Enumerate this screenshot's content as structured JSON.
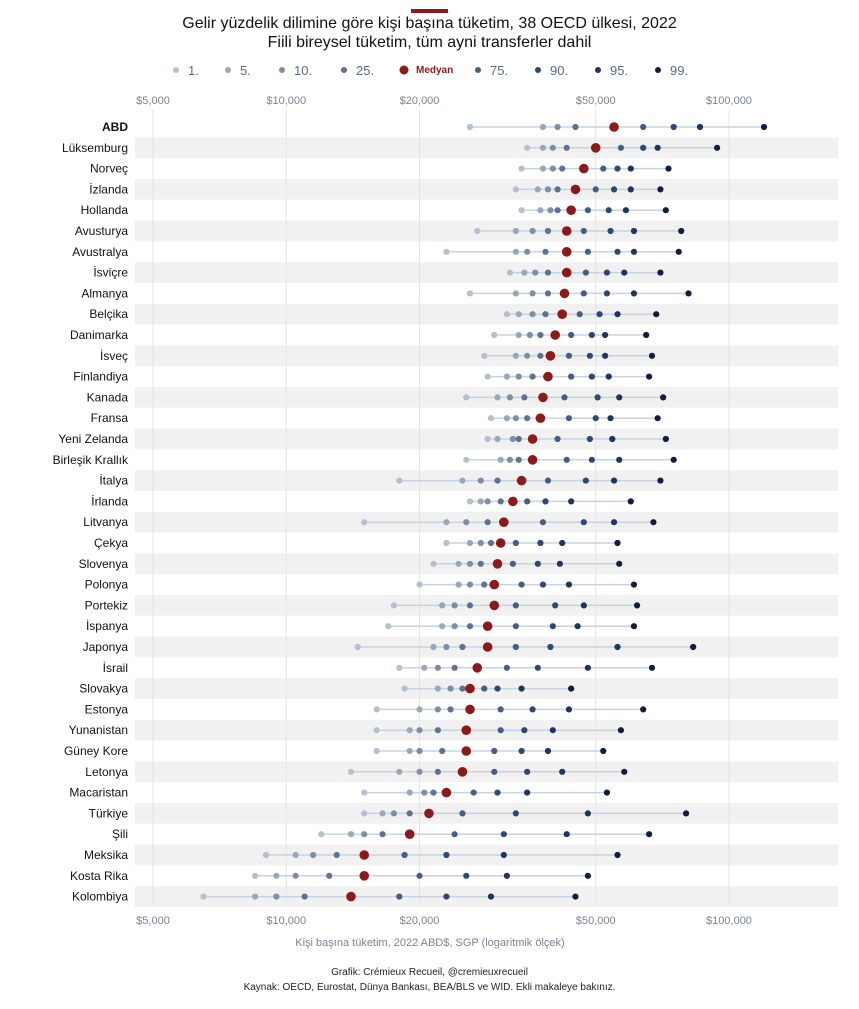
{
  "header": {
    "title_line1": "Gelir yüzdelik dilimine göre kişi başına tüketim, 38 OECD ülkesi, 2022",
    "title_line2": "Fiili bireysel tüketim, tüm ayni transferler dahil"
  },
  "footer": {
    "credit": "Grafik: Crémieux Recueil, @cremieuxrecueil",
    "source": "Kaynak: OECD, Eurostat, Dünya Bankası, BEA/BLS ve WID. Ekli makaleye bakınız."
  },
  "colors": {
    "accent": "#8b1a1a",
    "median": "#8b1a1a",
    "stripe": "#f1f1f1",
    "range_line": "#c9d3df",
    "grid": "#e4e4e4",
    "percentiles": [
      "#b3c0d1",
      "#98a8bc",
      "#7d8fa8",
      "#5e7394",
      "#8b1a1a",
      "#465e85",
      "#2e4775",
      "#203462",
      "#111d40"
    ]
  },
  "chart_data": {
    "type": "scatter",
    "title": "Gelir yüzdelik dilimine göre kişi başına tüketim, 38 OECD ülkesi, 2022",
    "subtitle": "Fiili bireysel tüketim, tüm ayni transferler dahil",
    "xlabel": "Kişi başına tüketim, 2022 ABD$, SGP (logaritmik ölçek)",
    "x_scale": "log",
    "xlim": [
      4000,
      130000
    ],
    "x_ticks": [
      5000,
      10000,
      20000,
      50000,
      100000
    ],
    "x_tick_labels": [
      "$5,000",
      "$10,000",
      "$20,000",
      "$50,000",
      "$100,000"
    ],
    "grid": "vertical",
    "legend": "top",
    "series_labels": [
      "1.",
      "5.",
      "10.",
      "25.",
      "Medyan",
      "75.",
      "90.",
      "95.",
      "99."
    ],
    "countries": [
      {
        "name": "ABD",
        "values": [
          26000,
          38000,
          41000,
          45000,
          55000,
          64000,
          75000,
          86000,
          120000
        ]
      },
      {
        "name": "Lüksemburg",
        "values": [
          35000,
          38000,
          40000,
          43000,
          50000,
          57000,
          64000,
          69000,
          94000
        ]
      },
      {
        "name": "Norveç",
        "values": [
          34000,
          38000,
          40000,
          42000,
          47000,
          52000,
          56000,
          60000,
          73000
        ]
      },
      {
        "name": "İzlanda",
        "values": [
          33000,
          37000,
          39000,
          41000,
          45000,
          50000,
          55000,
          60000,
          70000
        ]
      },
      {
        "name": "Hollanda",
        "values": [
          34000,
          37500,
          39500,
          41000,
          44000,
          48000,
          53500,
          58500,
          72000
        ]
      },
      {
        "name": "Avusturya",
        "values": [
          27000,
          33000,
          36000,
          39000,
          43000,
          47000,
          54000,
          61000,
          78000
        ]
      },
      {
        "name": "Avustralya",
        "values": [
          23000,
          33000,
          35000,
          38500,
          43000,
          48000,
          56000,
          61000,
          77000
        ]
      },
      {
        "name": "İsviçre",
        "values": [
          32000,
          34500,
          36500,
          39000,
          43000,
          47500,
          53000,
          58000,
          70000
        ]
      },
      {
        "name": "Almanya",
        "values": [
          26000,
          33000,
          36000,
          39000,
          42500,
          47000,
          53000,
          61000,
          81000
        ]
      },
      {
        "name": "Belçika",
        "values": [
          31500,
          33500,
          36000,
          38500,
          42000,
          46000,
          51000,
          56000,
          68500
        ]
      },
      {
        "name": "Danimarka",
        "values": [
          29500,
          33500,
          35500,
          37500,
          40500,
          44000,
          49000,
          52500,
          65000
        ]
      },
      {
        "name": "İsveç",
        "values": [
          28000,
          33000,
          35000,
          37500,
          39500,
          43500,
          48500,
          52500,
          67000
        ]
      },
      {
        "name": "Finlandiya",
        "values": [
          28500,
          31500,
          33500,
          36000,
          39000,
          44000,
          49000,
          53500,
          66000
        ]
      },
      {
        "name": "Kanada",
        "values": [
          25500,
          30000,
          32000,
          34500,
          38000,
          42500,
          50500,
          56500,
          71000
        ]
      },
      {
        "name": "Fransa",
        "values": [
          29000,
          31500,
          33000,
          35000,
          37500,
          43500,
          50000,
          54000,
          69000
        ]
      },
      {
        "name": "Yeni Zelanda",
        "values": [
          28500,
          30000,
          32500,
          33500,
          36000,
          41000,
          48500,
          54500,
          72000
        ]
      },
      {
        "name": "Birleşik Krallık",
        "values": [
          25500,
          30500,
          32000,
          33500,
          36000,
          43000,
          49000,
          56500,
          75000
        ]
      },
      {
        "name": "İtalya",
        "values": [
          18000,
          25000,
          27500,
          30000,
          34000,
          39000,
          47500,
          55000,
          70000
        ]
      },
      {
        "name": "İrlanda",
        "values": [
          26000,
          27500,
          28500,
          30500,
          32500,
          35000,
          38500,
          44000,
          60000
        ]
      },
      {
        "name": "Litvanya",
        "values": [
          15000,
          23000,
          25500,
          28500,
          31000,
          38000,
          47000,
          55000,
          67500
        ]
      },
      {
        "name": "Çekya",
        "values": [
          23000,
          26000,
          27500,
          29000,
          30500,
          33000,
          37500,
          42000,
          56000
        ]
      },
      {
        "name": "Slovenya",
        "values": [
          21500,
          24500,
          26000,
          27500,
          30000,
          32500,
          37000,
          41500,
          56500
        ]
      },
      {
        "name": "Polonya",
        "values": [
          20000,
          24500,
          26000,
          28000,
          29500,
          34000,
          38000,
          43500,
          61000
        ]
      },
      {
        "name": "Portekiz",
        "values": [
          17500,
          22500,
          24000,
          26000,
          29500,
          33000,
          40500,
          47000,
          62000
        ]
      },
      {
        "name": "İspanya",
        "values": [
          17000,
          22500,
          24000,
          26000,
          28500,
          33000,
          40000,
          45500,
          61000
        ]
      },
      {
        "name": "Japonya",
        "values": [
          14500,
          21500,
          23000,
          25000,
          28500,
          33000,
          39500,
          56000,
          83000
        ]
      },
      {
        "name": "İsrail",
        "values": [
          18000,
          20500,
          22000,
          24000,
          27000,
          31500,
          37000,
          48000,
          67000
        ]
      },
      {
        "name": "Slovakya",
        "values": [
          18500,
          22000,
          23500,
          25000,
          26000,
          28000,
          30000,
          34000,
          44000
        ]
      },
      {
        "name": "Estonya",
        "values": [
          16000,
          20000,
          22000,
          23500,
          26000,
          30500,
          36000,
          43500,
          64000
        ]
      },
      {
        "name": "Yunanistan",
        "values": [
          16000,
          19000,
          20000,
          22000,
          25500,
          30500,
          34500,
          40000,
          57000
        ]
      },
      {
        "name": "Güney Kore",
        "values": [
          16000,
          19000,
          20000,
          22500,
          25500,
          29500,
          34000,
          39000,
          52000
        ]
      },
      {
        "name": "Letonya",
        "values": [
          14000,
          18000,
          20000,
          22000,
          25000,
          29500,
          35000,
          42000,
          58000
        ]
      },
      {
        "name": "Macaristan",
        "values": [
          15000,
          19000,
          20500,
          21500,
          23000,
          26500,
          30000,
          35000,
          53000
        ]
      },
      {
        "name": "Türkiye",
        "values": [
          15000,
          16500,
          17500,
          19000,
          21000,
          25000,
          33000,
          48000,
          80000
        ]
      },
      {
        "name": "Şili",
        "values": [
          12000,
          14000,
          15000,
          16500,
          19000,
          24000,
          31000,
          43000,
          66000
        ]
      },
      {
        "name": "Meksika",
        "values": [
          9000,
          10500,
          11500,
          13000,
          15000,
          18500,
          23000,
          31000,
          56000
        ]
      },
      {
        "name": "Kosta Rika",
        "values": [
          8500,
          9500,
          10500,
          12500,
          15000,
          20000,
          25500,
          31500,
          48000
        ]
      },
      {
        "name": "Kolombiya",
        "values": [
          6500,
          8500,
          9500,
          11000,
          14000,
          18000,
          23000,
          29000,
          45000
        ]
      }
    ]
  }
}
